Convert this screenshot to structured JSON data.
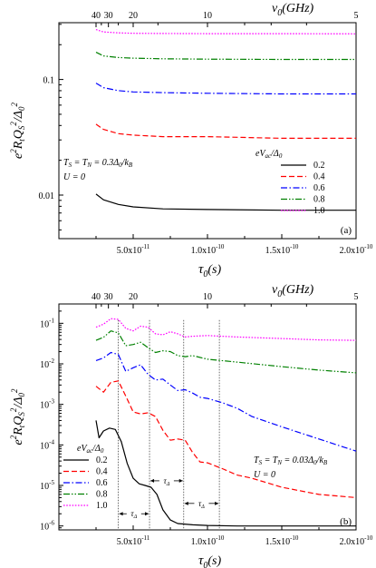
{
  "chart_data": [
    {
      "type": "line",
      "panel_label": "(a)",
      "xlabel_main": "τ",
      "xlabel_sub": "0",
      "xlabel_unit": "(s)",
      "ylabel_parts": [
        "e",
        "2",
        "R",
        "t",
        "Q",
        "S",
        "2",
        "/Δ",
        "0",
        "2"
      ],
      "x_top_label": "ν",
      "x_top_sub": "0",
      "x_top_unit": "(GHz)",
      "x_top_ticks": [
        "40",
        "30",
        "20",
        "10",
        "5"
      ],
      "x_top_tick_values_ghz": [
        40,
        30,
        20,
        10,
        5
      ],
      "x_ticks": [
        {
          "value": 5e-11,
          "mant": "5.0x10",
          "exp": "-11"
        },
        {
          "value": 1e-10,
          "mant": "1.0x10",
          "exp": "-10"
        },
        {
          "value": 1.5e-10,
          "mant": "1.5x10",
          "exp": "-10"
        },
        {
          "value": 2e-10,
          "mant": "2.0x10",
          "exp": "-10"
        }
      ],
      "y_ticks": [
        {
          "value": 0.01,
          "label": "0.01"
        },
        {
          "value": 0.1,
          "label": "0.1"
        }
      ],
      "y_scale": "log",
      "xlim": [
        0,
        2e-10
      ],
      "ylim": [
        0.0042,
        0.31
      ],
      "annotation_lines": [
        "T",
        "S",
        " = T",
        "N",
        " = 0.3Δ",
        "0",
        "/k",
        "B"
      ],
      "annotation_u": "U = 0",
      "legend_title": [
        "eV",
        "ac",
        "/Δ",
        "0"
      ],
      "legend_position": "right",
      "series": [
        {
          "name": "0.2",
          "color": "#000000",
          "dash": "solid",
          "x": [
            2.5e-11,
            3e-11,
            4e-11,
            5e-11,
            7e-11,
            1e-10,
            1.5e-10,
            2e-10
          ],
          "y": [
            0.0102,
            0.0091,
            0.0083,
            0.0079,
            0.0076,
            0.0075,
            0.0074,
            0.0074
          ]
        },
        {
          "name": "0.4",
          "color": "#ff0000",
          "dash": "dashed",
          "x": [
            2.5e-11,
            3e-11,
            4e-11,
            5e-11,
            7e-11,
            1e-10,
            1.5e-10,
            2e-10
          ],
          "y": [
            0.041,
            0.037,
            0.034,
            0.033,
            0.032,
            0.032,
            0.031,
            0.031
          ]
        },
        {
          "name": "0.6",
          "color": "#0000ff",
          "dash": "dashdot",
          "x": [
            2.5e-11,
            3e-11,
            4e-11,
            5e-11,
            7e-11,
            1e-10,
            1.5e-10,
            2e-10
          ],
          "y": [
            0.093,
            0.085,
            0.08,
            0.078,
            0.077,
            0.076,
            0.075,
            0.075
          ]
        },
        {
          "name": "0.8",
          "color": "#008000",
          "dash": "dashdotdot",
          "x": [
            2.5e-11,
            3e-11,
            4e-11,
            5e-11,
            7e-11,
            1e-10,
            1.5e-10,
            2e-10
          ],
          "y": [
            0.172,
            0.16,
            0.155,
            0.153,
            0.151,
            0.15,
            0.149,
            0.149
          ]
        },
        {
          "name": "1.0",
          "color": "#ff00ff",
          "dash": "dotted",
          "x": [
            2.5e-11,
            3e-11,
            4e-11,
            5e-11,
            7e-11,
            1e-10,
            1.5e-10,
            2e-10
          ],
          "y": [
            0.27,
            0.258,
            0.253,
            0.251,
            0.25,
            0.249,
            0.249,
            0.248
          ]
        }
      ]
    },
    {
      "type": "line",
      "panel_label": "(b)",
      "xlabel_main": "τ",
      "xlabel_sub": "0",
      "xlabel_unit": "(s)",
      "ylabel_parts": [
        "e",
        "2",
        "R",
        "t",
        "Q",
        "S",
        "2",
        "/Δ",
        "0",
        "2"
      ],
      "x_top_label": "ν",
      "x_top_sub": "0",
      "x_top_unit": "(GHz)",
      "x_top_ticks": [
        "40",
        "30",
        "20",
        "10",
        "5"
      ],
      "x_top_tick_values_ghz": [
        40,
        30,
        20,
        10,
        5
      ],
      "x_ticks": [
        {
          "value": 5e-11,
          "mant": "5.0x10",
          "exp": "-11"
        },
        {
          "value": 1e-10,
          "mant": "1.0x10",
          "exp": "-10"
        },
        {
          "value": 1.5e-10,
          "mant": "1.5x10",
          "exp": "-10"
        },
        {
          "value": 2e-10,
          "mant": "2.0x10",
          "exp": "-10"
        }
      ],
      "y_ticks": [
        {
          "value": 1e-06,
          "mant": "10",
          "exp": "-6"
        },
        {
          "value": 1e-05,
          "mant": "10",
          "exp": "-5"
        },
        {
          "value": 0.0001,
          "mant": "10",
          "exp": "-4"
        },
        {
          "value": 0.001,
          "mant": "10",
          "exp": "-3"
        },
        {
          "value": 0.01,
          "mant": "10",
          "exp": "-2"
        },
        {
          "value": 0.1,
          "mant": "10",
          "exp": "-1"
        }
      ],
      "y_scale": "log",
      "xlim": [
        0,
        2e-10
      ],
      "ylim": [
        8e-07,
        0.3
      ],
      "vlines_x": [
        4e-11,
        6.1e-11,
        8.4e-11,
        1.08e-10
      ],
      "tau_delta_label": "τ",
      "tau_delta_sub": "Δ",
      "tau_arrows": [
        {
          "x1": 4e-11,
          "x2": 6.1e-11,
          "y": 2e-06
        },
        {
          "x1": 6.1e-11,
          "x2": 8.4e-11,
          "y": 1.3e-05
        },
        {
          "x1": 8.4e-11,
          "x2": 1.08e-10,
          "y": 3.6e-06
        }
      ],
      "annotation_lines": [
        "T",
        "S",
        " = T",
        "N",
        " = 0.03Δ",
        "0",
        "/k",
        "B"
      ],
      "annotation_u": "U = 0",
      "legend_title": [
        "eV",
        "ac",
        "/Δ",
        "0"
      ],
      "legend_position": "bottom-left",
      "series": [
        {
          "name": "0.2",
          "color": "#000000",
          "dash": "solid",
          "x": [
            2.5e-11,
            2.7e-11,
            3e-11,
            3.4e-11,
            3.8e-11,
            4.2e-11,
            4.6e-11,
            5e-11,
            5.4e-11,
            5.8e-11,
            6.2e-11,
            6.6e-11,
            7e-11,
            7.5e-11,
            8e-11,
            9e-11,
            1e-10,
            1.2e-10,
            1.5e-10,
            2e-10
          ],
          "y": [
            0.0004,
            0.00015,
            0.00022,
            0.00026,
            0.00024,
            0.00012,
            3.5e-05,
            1.5e-05,
            1.1e-05,
            1e-05,
            9e-06,
            6e-06,
            2.5e-06,
            1.4e-06,
            1.15e-06,
            1.07e-06,
            1.03e-06,
            1e-06,
            1e-06,
            1e-06
          ]
        },
        {
          "name": "0.4",
          "color": "#ff0000",
          "dash": "dashed",
          "x": [
            2.5e-11,
            3e-11,
            3.5e-11,
            4e-11,
            4.5e-11,
            5e-11,
            5.5e-11,
            6e-11,
            6.5e-11,
            7e-11,
            7.5e-11,
            8e-11,
            8.5e-11,
            9e-11,
            9.5e-11,
            1e-10,
            1.1e-10,
            1.2e-10,
            1.3e-10,
            1.5e-10,
            1.75e-10,
            2e-10
          ],
          "y": [
            0.0028,
            0.002,
            0.0035,
            0.0038,
            0.0016,
            0.00065,
            0.00058,
            0.00062,
            0.0005,
            0.00023,
            0.00013,
            0.00014,
            0.00013,
            6.5e-05,
            3.8e-05,
            3.6e-05,
            2.6e-05,
            1.8e-05,
            1.5e-05,
            9e-06,
            6e-06,
            5e-06
          ]
        },
        {
          "name": "0.6",
          "color": "#0000ff",
          "dash": "dashdot",
          "x": [
            2.5e-11,
            3e-11,
            3.5e-11,
            4e-11,
            4.5e-11,
            5e-11,
            5.5e-11,
            6e-11,
            6.5e-11,
            7e-11,
            7.5e-11,
            8e-11,
            8.5e-11,
            9e-11,
            9.5e-11,
            1e-10,
            1.1e-10,
            1.2e-10,
            1.3e-10,
            1.5e-10,
            1.75e-10,
            2e-10
          ],
          "y": [
            0.012,
            0.014,
            0.019,
            0.017,
            0.0065,
            0.008,
            0.0095,
            0.0055,
            0.004,
            0.0042,
            0.003,
            0.0022,
            0.0023,
            0.0019,
            0.0015,
            0.0014,
            0.0011,
            0.0008,
            0.0005,
            0.00028,
            0.00014,
            7e-05
          ]
        },
        {
          "name": "0.8",
          "color": "#008000",
          "dash": "dashdotdot",
          "x": [
            2.5e-11,
            3e-11,
            3.5e-11,
            4e-11,
            4.5e-11,
            5e-11,
            5.5e-11,
            6e-11,
            6.5e-11,
            7e-11,
            7.5e-11,
            8e-11,
            8.5e-11,
            9e-11,
            1e-10,
            1.2e-10,
            1.5e-10,
            1.75e-10,
            2e-10
          ],
          "y": [
            0.038,
            0.045,
            0.065,
            0.058,
            0.028,
            0.03,
            0.034,
            0.025,
            0.019,
            0.021,
            0.02,
            0.016,
            0.015,
            0.016,
            0.013,
            0.011,
            0.0085,
            0.007,
            0.006
          ]
        },
        {
          "name": "1.0",
          "color": "#ff00ff",
          "dash": "dotted",
          "x": [
            2.5e-11,
            3e-11,
            3.5e-11,
            4e-11,
            4.5e-11,
            5e-11,
            5.5e-11,
            6e-11,
            6.5e-11,
            7e-11,
            7.5e-11,
            8e-11,
            8.5e-11,
            9e-11,
            1e-10,
            1.2e-10,
            1.5e-10,
            1.75e-10,
            2e-10
          ],
          "y": [
            0.08,
            0.095,
            0.13,
            0.125,
            0.075,
            0.065,
            0.085,
            0.08,
            0.055,
            0.052,
            0.062,
            0.055,
            0.046,
            0.048,
            0.05,
            0.046,
            0.042,
            0.039,
            0.038
          ]
        }
      ]
    }
  ]
}
